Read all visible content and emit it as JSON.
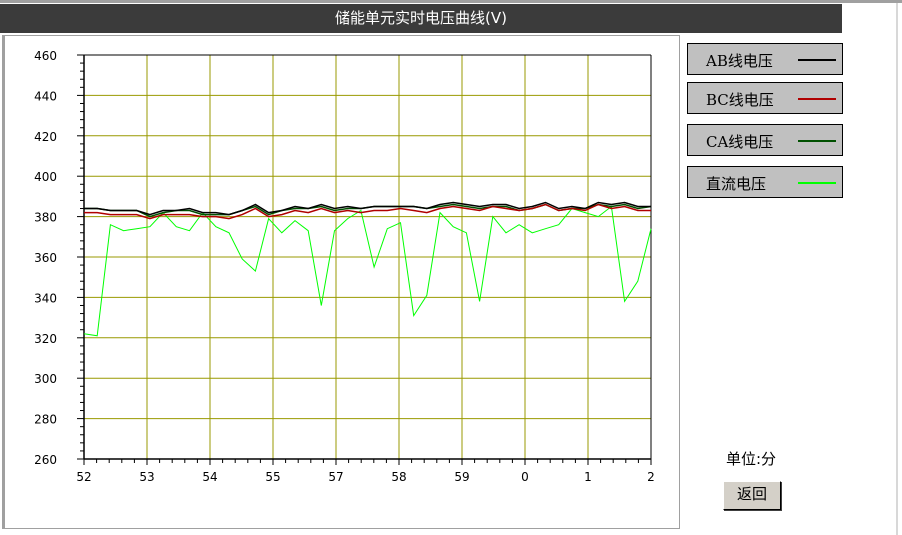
{
  "title": "储能单元实时电压曲线(V)",
  "legend": [
    {
      "label": "AB线电压",
      "color": "#000000"
    },
    {
      "label": "BC线电压",
      "color": "#b00000"
    },
    {
      "label": "CA线电压",
      "color": "#005000"
    },
    {
      "label": "直流电压",
      "color": "#00ff00"
    }
  ],
  "unit_label": "单位:分",
  "back_button": "返回",
  "chart_data": {
    "type": "line",
    "xticks": [
      "52",
      "53",
      "54",
      "55",
      "57",
      "58",
      "59",
      "0",
      "1",
      "2"
    ],
    "yticks": [
      260,
      280,
      300,
      320,
      340,
      360,
      380,
      400,
      420,
      440,
      460
    ],
    "ylim": [
      260,
      460
    ],
    "grid": true,
    "grid_color": "#999900",
    "series": [
      {
        "name": "AB线电压",
        "color": "#000000",
        "values": [
          384,
          384,
          383,
          383,
          383,
          381,
          383,
          383,
          384,
          382,
          382,
          381,
          383,
          386,
          382,
          383,
          385,
          384,
          386,
          384,
          385,
          384,
          385,
          385,
          385,
          385,
          384,
          386,
          387,
          386,
          385,
          386,
          386,
          384,
          385,
          387,
          384,
          385,
          384,
          387,
          386,
          387,
          385,
          385
        ]
      },
      {
        "name": "BC线电压",
        "color": "#b00000",
        "values": [
          382,
          382,
          381,
          381,
          381,
          379,
          381,
          381,
          381,
          380,
          380,
          379,
          381,
          384,
          380,
          381,
          383,
          382,
          384,
          382,
          383,
          382,
          383,
          383,
          384,
          383,
          382,
          384,
          385,
          384,
          383,
          385,
          384,
          383,
          384,
          386,
          383,
          384,
          383,
          386,
          384,
          385,
          383,
          383
        ]
      },
      {
        "name": "CA线电压",
        "color": "#005000",
        "values": [
          384,
          384,
          383,
          383,
          383,
          380,
          382,
          383,
          383,
          381,
          381,
          381,
          383,
          385,
          381,
          383,
          384,
          384,
          385,
          383,
          384,
          384,
          385,
          385,
          385,
          385,
          384,
          385,
          386,
          385,
          384,
          385,
          385,
          383,
          384,
          386,
          383,
          384,
          384,
          386,
          385,
          386,
          384,
          385
        ]
      },
      {
        "name": "直流电压",
        "color": "#00ff00",
        "values": [
          322,
          321,
          376,
          373,
          374,
          375,
          382,
          375,
          373,
          382,
          375,
          372,
          359,
          353,
          379,
          372,
          378,
          373,
          336,
          373,
          379,
          383,
          355,
          374,
          377,
          331,
          341,
          382,
          375,
          372,
          338,
          380,
          372,
          376,
          372,
          374,
          376,
          384,
          382,
          380,
          385,
          338,
          348,
          374
        ]
      }
    ]
  }
}
